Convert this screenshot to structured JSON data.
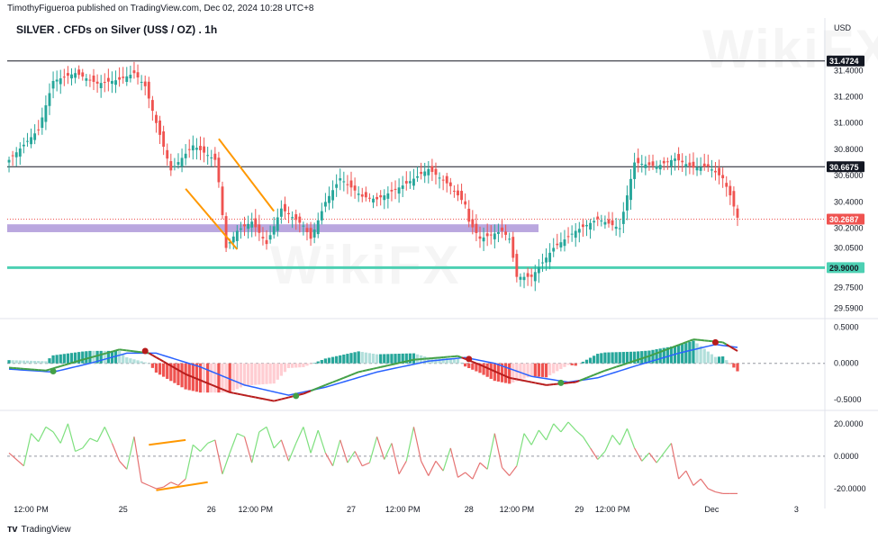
{
  "header": {
    "published_text": "TimothyFigueroa published on TradingView.com, Dec 02, 2024 10:28 UTC+8",
    "title": "SILVER . CFDs on Silver (US$ / OZ) . 1h",
    "currency": "USD"
  },
  "footer": {
    "brand": "TradingView",
    "logo_icon": "tradingview-logo-icon"
  },
  "watermark": "WikiFX",
  "colors": {
    "bull": "#26a69a",
    "bear": "#ef5350",
    "orange": "#ff9800",
    "support_zone": "#b39ddb",
    "support_line": "#4dd0b3",
    "macd_line": "#2e7d32",
    "signal_line": "#2962ff",
    "signal_red": "#b71c1c",
    "osc_green": "#7ee07e",
    "osc_red": "#e57373"
  },
  "chart_data": {
    "type": "candlestick",
    "symbol": "SILVER",
    "timeframe": "1h",
    "price_axis": {
      "ylim": [
        29.54,
        31.58
      ],
      "ticks": [
        "31.4000",
        "31.2000",
        "31.0000",
        "30.8000",
        "30.6000",
        "30.4000",
        "30.2000",
        "30.0500",
        "29.7500",
        "29.5900"
      ],
      "tick_values": [
        31.4,
        31.2,
        31.0,
        30.8,
        30.6,
        30.4,
        30.2,
        30.05,
        29.75,
        29.59
      ]
    },
    "x_labels": [
      "12:00 PM",
      "25",
      "26",
      "12:00 PM",
      "27",
      "12:00 PM",
      "28",
      "12:00 PM",
      "29",
      "12:00 PM",
      "Dec",
      "3"
    ],
    "x_label_index": [
      6,
      31,
      55,
      67,
      93,
      107,
      125,
      138,
      155,
      164,
      191,
      214
    ],
    "num_bars": 222,
    "levels": [
      {
        "label": "31.4724",
        "value": 31.4724,
        "kind": "resistance"
      },
      {
        "label": "30.6675",
        "value": 30.6675,
        "kind": "resistance"
      },
      {
        "label": "29.9000",
        "value": 29.9,
        "kind": "support"
      },
      {
        "label": "30.2687",
        "value": 30.2687,
        "kind": "last_price"
      }
    ],
    "support_zone": [
      30.17,
      30.23
    ],
    "close_path": [
      [
        0,
        30.72
      ],
      [
        8,
        30.95
      ],
      [
        12,
        31.32
      ],
      [
        18,
        31.38
      ],
      [
        24,
        31.3
      ],
      [
        30,
        31.33
      ],
      [
        34,
        31.38
      ],
      [
        37,
        31.28
      ],
      [
        40,
        31.0
      ],
      [
        44,
        30.64
      ],
      [
        50,
        30.83
      ],
      [
        56,
        30.72
      ],
      [
        57,
        30.55
      ],
      [
        59,
        30.05
      ],
      [
        62,
        30.18
      ],
      [
        66,
        30.25
      ],
      [
        70,
        30.08
      ],
      [
        74,
        30.35
      ],
      [
        80,
        30.22
      ],
      [
        82,
        30.12
      ],
      [
        86,
        30.4
      ],
      [
        90,
        30.58
      ],
      [
        96,
        30.44
      ],
      [
        100,
        30.42
      ],
      [
        108,
        30.54
      ],
      [
        114,
        30.65
      ],
      [
        120,
        30.52
      ],
      [
        124,
        30.38
      ],
      [
        125,
        30.25
      ],
      [
        128,
        30.12
      ],
      [
        134,
        30.18
      ],
      [
        136,
        30.12
      ],
      [
        138,
        29.83
      ],
      [
        142,
        29.83
      ],
      [
        148,
        30.05
      ],
      [
        154,
        30.18
      ],
      [
        160,
        30.27
      ],
      [
        166,
        30.2
      ],
      [
        170,
        30.7
      ],
      [
        176,
        30.67
      ],
      [
        181,
        30.73
      ],
      [
        186,
        30.66
      ],
      [
        190,
        30.67
      ],
      [
        194,
        30.58
      ],
      [
        196,
        30.45
      ],
      [
        198,
        30.28
      ]
    ],
    "price_annotations": [
      {
        "kind": "orange-channel",
        "points": [
          [
            48,
            30.5
          ],
          [
            62,
            30.04
          ],
          [
            57,
            30.88
          ],
          [
            72,
            30.33
          ]
        ]
      }
    ],
    "macd": {
      "ylim": [
        -0.6,
        0.58
      ],
      "ticks": [
        "0.5000",
        "0.0000",
        "-0.5000"
      ],
      "tick_values": [
        0.5,
        0.0,
        -0.5
      ],
      "macd_path": [
        [
          0,
          -0.06
        ],
        [
          10,
          -0.1
        ],
        [
          20,
          0.05
        ],
        [
          30,
          0.19
        ],
        [
          38,
          0.14
        ],
        [
          48,
          -0.15
        ],
        [
          60,
          -0.4
        ],
        [
          72,
          -0.52
        ],
        [
          80,
          -0.42
        ],
        [
          95,
          -0.12
        ],
        [
          110,
          0.05
        ],
        [
          122,
          0.1
        ],
        [
          128,
          -0.02
        ],
        [
          136,
          -0.2
        ],
        [
          146,
          -0.3
        ],
        [
          154,
          -0.26
        ],
        [
          162,
          -0.1
        ],
        [
          174,
          0.1
        ],
        [
          186,
          0.33
        ],
        [
          194,
          0.29
        ],
        [
          198,
          0.17
        ]
      ],
      "signal_path": [
        [
          0,
          -0.08
        ],
        [
          12,
          -0.12
        ],
        [
          22,
          0.0
        ],
        [
          32,
          0.14
        ],
        [
          40,
          0.14
        ],
        [
          52,
          -0.05
        ],
        [
          64,
          -0.3
        ],
        [
          76,
          -0.44
        ],
        [
          86,
          -0.33
        ],
        [
          100,
          -0.12
        ],
        [
          114,
          0.03
        ],
        [
          124,
          0.08
        ],
        [
          132,
          0.0
        ],
        [
          142,
          -0.18
        ],
        [
          152,
          -0.26
        ],
        [
          160,
          -0.2
        ],
        [
          170,
          -0.04
        ],
        [
          182,
          0.14
        ],
        [
          192,
          0.26
        ],
        [
          198,
          0.22
        ]
      ],
      "cross_points": [
        [
          12,
          -0.11,
          "bull"
        ],
        [
          37,
          0.17,
          "bear"
        ],
        [
          78,
          -0.45,
          "bull"
        ],
        [
          125,
          0.06,
          "bear"
        ],
        [
          150,
          -0.27,
          "bull"
        ],
        [
          192,
          0.29,
          "bear"
        ]
      ]
    },
    "oscillator": {
      "ylim": [
        -25,
        26
      ],
      "ticks": [
        "20.0000",
        "0.0000",
        "-20.0000"
      ],
      "tick_values": [
        20,
        0,
        -20
      ],
      "path": [
        [
          0,
          2
        ],
        [
          4,
          -6
        ],
        [
          6,
          14
        ],
        [
          8,
          9
        ],
        [
          10,
          18
        ],
        [
          12,
          15
        ],
        [
          14,
          8
        ],
        [
          16,
          20
        ],
        [
          18,
          3
        ],
        [
          20,
          5
        ],
        [
          22,
          11
        ],
        [
          24,
          9
        ],
        [
          26,
          18
        ],
        [
          28,
          8
        ],
        [
          30,
          -3
        ],
        [
          32,
          -8
        ],
        [
          34,
          12
        ],
        [
          36,
          -16
        ],
        [
          38,
          -18
        ],
        [
          40,
          -20
        ],
        [
          42,
          -19
        ],
        [
          44,
          -16
        ],
        [
          46,
          -18
        ],
        [
          48,
          -14
        ],
        [
          50,
          7
        ],
        [
          52,
          3
        ],
        [
          54,
          8
        ],
        [
          56,
          10
        ],
        [
          58,
          -11
        ],
        [
          60,
          2
        ],
        [
          62,
          14
        ],
        [
          64,
          12
        ],
        [
          66,
          -4
        ],
        [
          68,
          15
        ],
        [
          70,
          18
        ],
        [
          72,
          5
        ],
        [
          74,
          10
        ],
        [
          76,
          -3
        ],
        [
          78,
          8
        ],
        [
          80,
          18
        ],
        [
          82,
          2
        ],
        [
          84,
          16
        ],
        [
          86,
          2
        ],
        [
          88,
          -6
        ],
        [
          90,
          10
        ],
        [
          92,
          -4
        ],
        [
          94,
          3
        ],
        [
          96,
          -6
        ],
        [
          98,
          -4
        ],
        [
          100,
          12
        ],
        [
          102,
          -2
        ],
        [
          104,
          8
        ],
        [
          106,
          -11
        ],
        [
          108,
          -3
        ],
        [
          110,
          18
        ],
        [
          112,
          -3
        ],
        [
          114,
          -12
        ],
        [
          116,
          -3
        ],
        [
          118,
          -9
        ],
        [
          120,
          5
        ],
        [
          122,
          -13
        ],
        [
          124,
          -10
        ],
        [
          126,
          -14
        ],
        [
          128,
          -4
        ],
        [
          130,
          -8
        ],
        [
          132,
          14
        ],
        [
          134,
          -7
        ],
        [
          136,
          -12
        ],
        [
          138,
          -6
        ],
        [
          140,
          14
        ],
        [
          142,
          7
        ],
        [
          144,
          16
        ],
        [
          146,
          10
        ],
        [
          148,
          20
        ],
        [
          150,
          15
        ],
        [
          152,
          21
        ],
        [
          154,
          16
        ],
        [
          156,
          12
        ],
        [
          158,
          5
        ],
        [
          160,
          -2
        ],
        [
          162,
          3
        ],
        [
          164,
          13
        ],
        [
          166,
          7
        ],
        [
          168,
          17
        ],
        [
          170,
          5
        ],
        [
          172,
          -3
        ],
        [
          174,
          2
        ],
        [
          176,
          -4
        ],
        [
          178,
          2
        ],
        [
          180,
          8
        ],
        [
          182,
          -14
        ],
        [
          184,
          -9
        ],
        [
          186,
          -18
        ],
        [
          188,
          -14
        ],
        [
          190,
          -20
        ],
        [
          192,
          -22
        ],
        [
          194,
          -23
        ],
        [
          196,
          -23
        ],
        [
          198,
          -23
        ]
      ],
      "divergence_lines": [
        {
          "points": [
            [
              40,
              -21
            ],
            [
              54,
              -16
            ]
          ]
        },
        {
          "points": [
            [
              38,
              7
            ],
            [
              48,
              10
            ]
          ]
        }
      ]
    }
  }
}
